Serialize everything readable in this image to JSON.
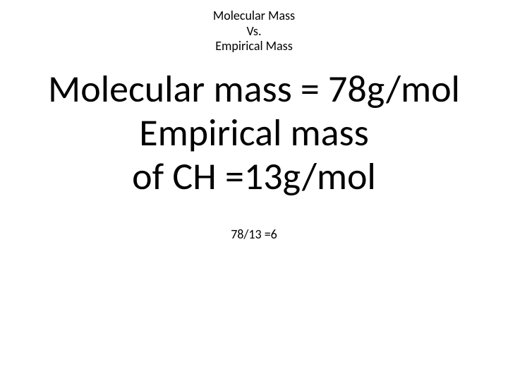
{
  "header": {
    "line1": "Molecular Mass",
    "line2": "Vs.",
    "line3": "Empirical Mass"
  },
  "main": {
    "line1": "Molecular mass = 78g/mol",
    "line2": "Empirical mass",
    "line3": "of CH =13g/mol"
  },
  "footer": {
    "line1": "78/13 =6"
  },
  "styling": {
    "background_color": "#ffffff",
    "text_color": "#000000",
    "header_fontsize": 18,
    "main_fontsize": 54,
    "footer_fontsize": 18,
    "font_family": "Calibri"
  }
}
